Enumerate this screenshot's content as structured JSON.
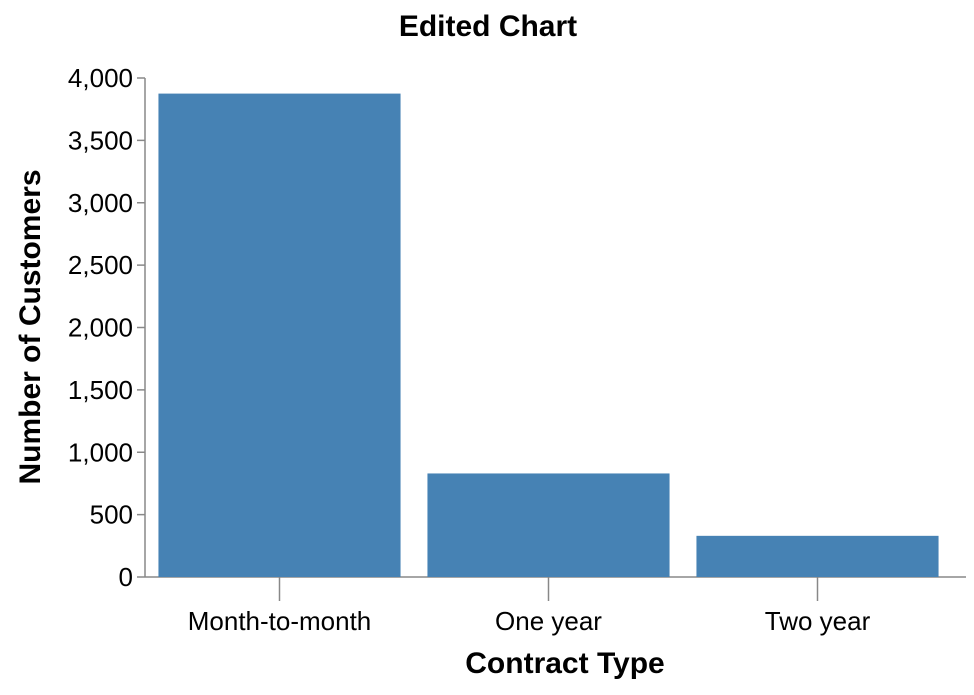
{
  "chart_data": {
    "type": "bar",
    "title": "Edited Chart",
    "xlabel": "Contract Type",
    "ylabel": "Number of Customers",
    "categories": [
      "Month-to-month",
      "One year",
      "Two year"
    ],
    "values": [
      3875,
      830,
      330
    ],
    "ylim": [
      0,
      4000
    ],
    "yticks": [
      0,
      500,
      1000,
      1500,
      2000,
      2500,
      3000,
      3500,
      4000
    ],
    "ytick_labels": [
      "0",
      "500",
      "1,000",
      "1,500",
      "2,000",
      "2,500",
      "3,000",
      "3,500",
      "4,000"
    ],
    "bar_color": "#4682b4",
    "grid": false,
    "legend": "none"
  }
}
